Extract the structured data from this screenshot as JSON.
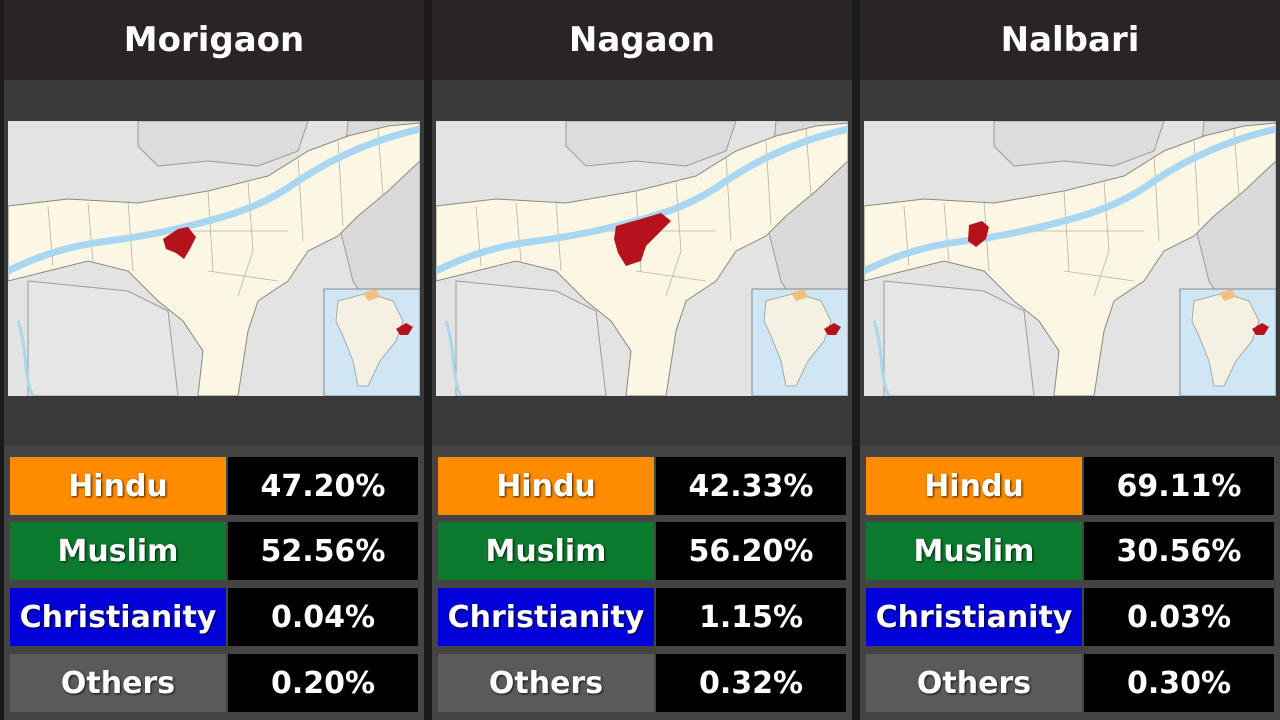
{
  "colors": {
    "hindu": "#FF8C00",
    "muslim": "#0B7A2E",
    "christianity": "#0000D8",
    "others": "#5A5A5A",
    "highlight": "#B5121B"
  },
  "panels": [
    {
      "title": "Morigaon",
      "map_icon": "assam-district-map",
      "stats": [
        {
          "label": "Hindu",
          "value": "47.20%"
        },
        {
          "label": "Muslim",
          "value": "52.56%"
        },
        {
          "label": "Christianity",
          "value": "0.04%"
        },
        {
          "label": "Others",
          "value": "0.20%"
        }
      ]
    },
    {
      "title": "Nagaon",
      "map_icon": "assam-district-map",
      "stats": [
        {
          "label": "Hindu",
          "value": "42.33%"
        },
        {
          "label": "Muslim",
          "value": "56.20%"
        },
        {
          "label": "Christianity",
          "value": "1.15%"
        },
        {
          "label": "Others",
          "value": "0.32%"
        }
      ]
    },
    {
      "title": "Nalbari",
      "map_icon": "assam-district-map",
      "stats": [
        {
          "label": "Hindu",
          "value": "69.11%"
        },
        {
          "label": "Muslim",
          "value": "30.56%"
        },
        {
          "label": "Christianity",
          "value": "0.03%"
        },
        {
          "label": "Others",
          "value": "0.30%"
        }
      ]
    }
  ]
}
